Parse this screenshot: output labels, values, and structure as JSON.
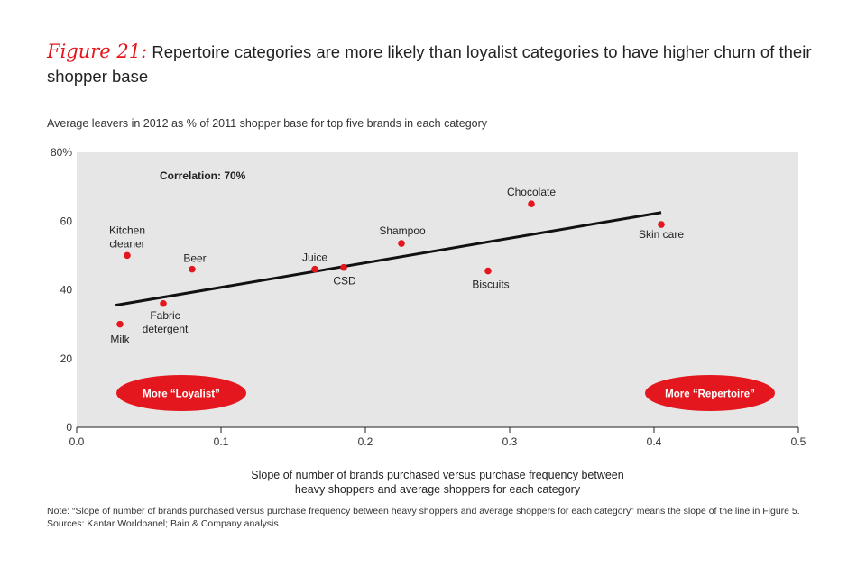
{
  "figure": {
    "label": "Figure 21:",
    "title": "Repertoire categories are more likely than loyalist categories to have higher churn of their shopper base"
  },
  "subtitle": "Average leavers in 2012 as % of 2011 shopper base for top five brands in each category",
  "xlabel_line1": "Slope of number of brands purchased versus purchase frequency between",
  "xlabel_line2": "heavy shoppers and average shoppers for each category",
  "note": "Note: “Slope of number of brands purchased versus purchase frequency between heavy shoppers and average shoppers for each category” means the slope of the line in Figure 5.",
  "sources": "Sources: Kantar Worldpanel; Bain & Company analysis",
  "colors": {
    "accent": "#e3171d",
    "plot_bg": "#e6e6e6",
    "trend": "#111111"
  },
  "chart_data": {
    "type": "scatter",
    "title": "Repertoire categories are more likely than loyalist categories to have higher churn of their shopper base",
    "xlabel": "Slope of number of brands purchased versus purchase frequency between heavy shoppers and average shoppers for each category",
    "ylabel": "Average leavers in 2012 as % of 2011 shopper base for top five brands in each category",
    "xlim": [
      0,
      0.5
    ],
    "ylim": [
      0,
      80
    ],
    "x_ticks": [
      "0.0",
      "0.1",
      "0.2",
      "0.3",
      "0.4",
      "0.5"
    ],
    "y_ticks": [
      "0",
      "20",
      "40",
      "60",
      "80%"
    ],
    "points": [
      {
        "label": "Milk",
        "x": 0.03,
        "y": 30
      },
      {
        "label": "Kitchen cleaner",
        "x": 0.035,
        "y": 50
      },
      {
        "label": "Fabric detergent",
        "x": 0.06,
        "y": 36
      },
      {
        "label": "Beer",
        "x": 0.08,
        "y": 46
      },
      {
        "label": "Juice",
        "x": 0.165,
        "y": 46
      },
      {
        "label": "CSD",
        "x": 0.185,
        "y": 46.5
      },
      {
        "label": "Shampoo",
        "x": 0.225,
        "y": 53.5
      },
      {
        "label": "Biscuits",
        "x": 0.285,
        "y": 45.5
      },
      {
        "label": "Chocolate",
        "x": 0.315,
        "y": 65
      },
      {
        "label": "Skin care",
        "x": 0.405,
        "y": 59
      }
    ],
    "trendline": {
      "x": [
        0.027,
        0.405
      ],
      "y": [
        35.5,
        62.5
      ]
    },
    "annotations": {
      "correlation": "Correlation: 70%",
      "loyalist": "More “Loyalist”",
      "repertoire": "More “Repertoire”"
    }
  }
}
